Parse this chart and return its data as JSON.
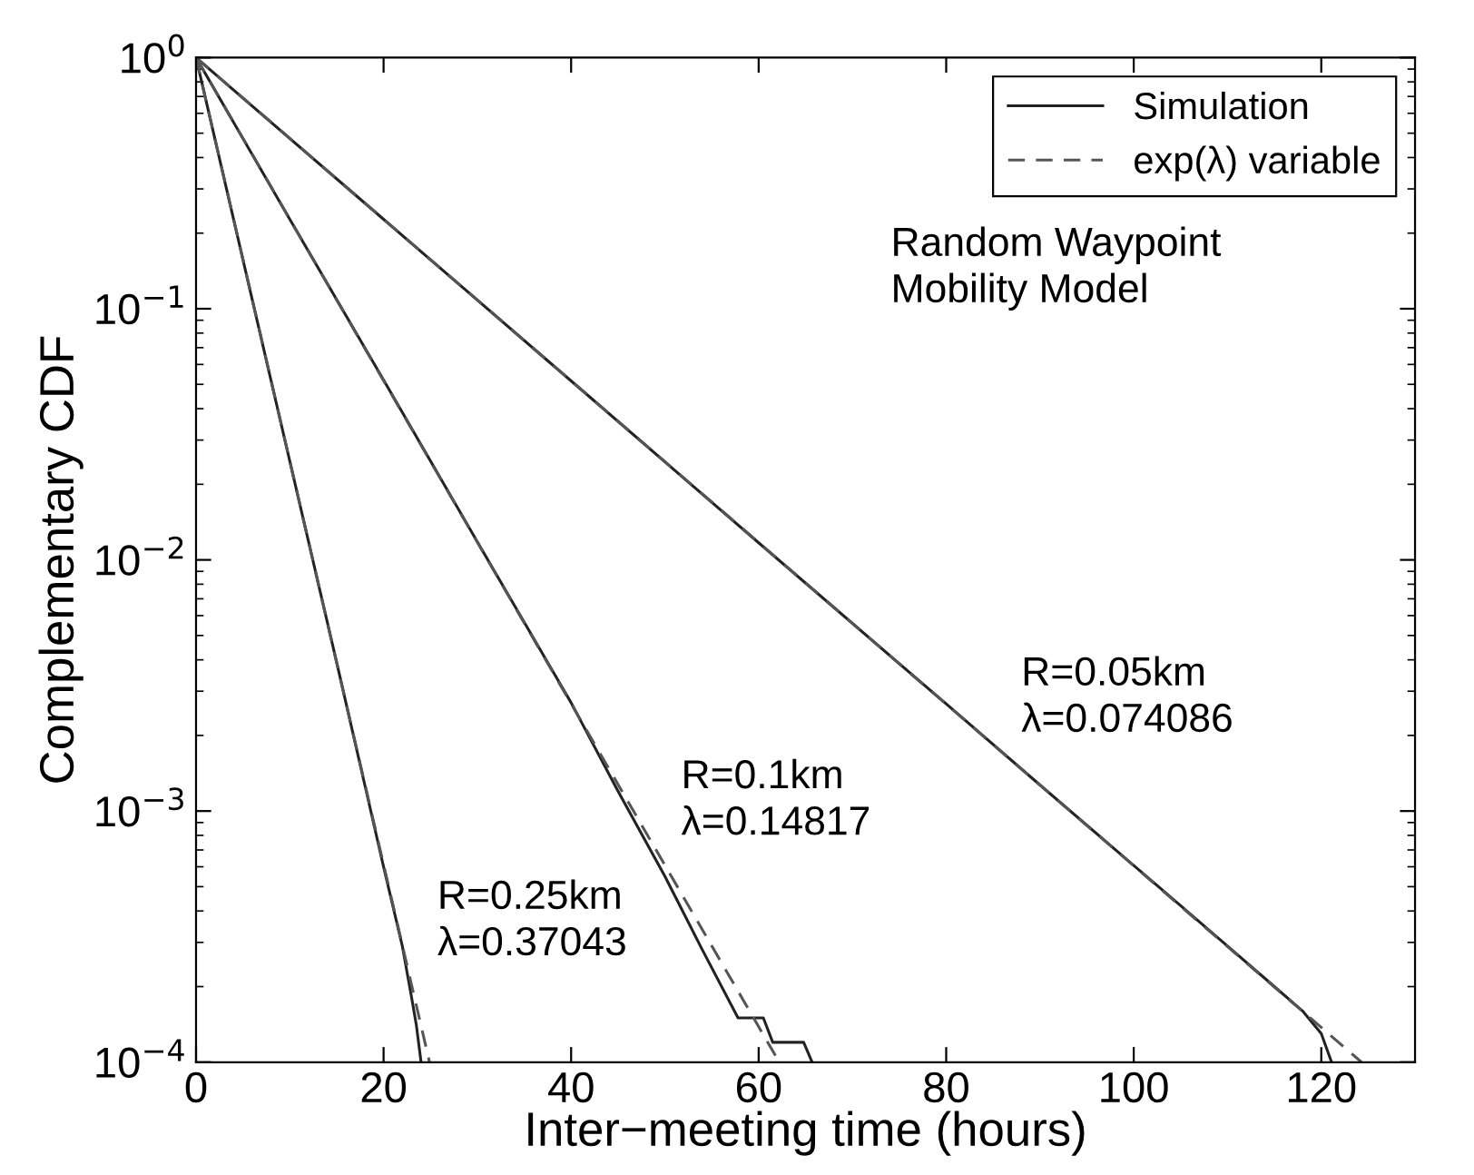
{
  "chart_data": {
    "type": "line",
    "xlabel": "Inter−meeting time (hours)",
    "ylabel": "Complementary CDF",
    "log": "y",
    "grid": false,
    "legend": "top right",
    "xlim": [
      0,
      130
    ],
    "xticks": [
      0,
      20,
      40,
      60,
      80,
      100,
      120
    ],
    "ylim": [
      0.0001,
      1
    ],
    "yticks": [
      {
        "value": 0.0001,
        "label": "10$^{−4}$"
      },
      {
        "value": 0.001,
        "label": "10$^{−3}$"
      },
      {
        "value": 0.01,
        "label": "10$^{−2}$"
      },
      {
        "value": 0.1,
        "label": "10$^{−1}$"
      },
      {
        "value": 1,
        "label": "10$^{0}$"
      }
    ],
    "series": [
      {
        "name": "Simulation",
        "color": "#222222",
        "line_style": "solid",
        "x": [
          0,
          20,
          40,
          60,
          80,
          90,
          100,
          105,
          110,
          115,
          118,
          120,
          121.1
        ],
        "values": [
          1,
          0.227,
          0.0516,
          0.0117,
          0.00267,
          0.00127,
          0.000607,
          0.00042,
          0.00029,
          0.0002,
          0.00016,
          0.00013,
          0.0001
        ]
      },
      {
        "color": "#222222",
        "line_style": "solid",
        "x": [
          0,
          10,
          20,
          30,
          40,
          45,
          50,
          54,
          57.8,
          60.5,
          61.5,
          64.8,
          65.7
        ],
        "values": [
          1,
          0.227,
          0.052,
          0.0118,
          0.0027,
          0.0012,
          0.00055,
          0.00028,
          0.00015,
          0.00015,
          0.00012,
          0.00012,
          0.0001
        ]
      },
      {
        "color": "#222222",
        "line_style": "solid",
        "x": [
          0,
          5,
          10,
          15,
          18,
          20,
          22,
          23,
          23.5,
          24
        ],
        "values": [
          1,
          0.157,
          0.0247,
          0.0039,
          0.00127,
          0.0006,
          0.00029,
          0.00018,
          0.00014,
          0.0001
        ]
      },
      {
        "name": "exp(λ) variable",
        "color": "#555555",
        "line_style": "dashed",
        "x": [
          0,
          124.3
        ],
        "values": [
          1,
          0.0001
        ]
      },
      {
        "color": "#555555",
        "line_style": "dashed",
        "x": [
          0,
          62.2
        ],
        "values": [
          1,
          0.0001
        ]
      },
      {
        "color": "#555555",
        "line_style": "dashed",
        "x": [
          0,
          24.9
        ],
        "values": [
          1,
          0.0001
        ]
      }
    ],
    "annotations": [
      "Random Waypoint\nMobility Model",
      "R=0.05km\nλ=0.074086",
      "R=0.1km\nλ=0.14817",
      "R=0.25km\nλ=0.37043"
    ]
  }
}
